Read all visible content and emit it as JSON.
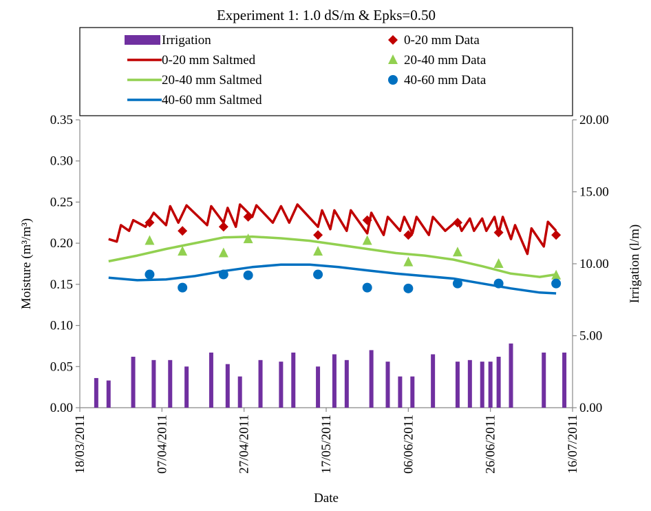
{
  "chart_data": {
    "type": "combo",
    "title": "Experiment 1: 1.0 dS/m & Epks=0.50",
    "x_label": "Date",
    "y_label": "Moisture (m³/m³)",
    "y2_label": "Irrigation (l/m)",
    "xlim": [
      "18/03/2011",
      "16/07/2011"
    ],
    "xticks": [
      "18/03/2011",
      "07/04/2011",
      "27/04/2011",
      "17/05/2011",
      "06/06/2011",
      "26/06/2011",
      "16/07/2011"
    ],
    "ylim": [
      0,
      0.35
    ],
    "yticks": [
      {
        "value": 0,
        "label": "0.00"
      },
      {
        "value": 0.05,
        "label": "0.05"
      },
      {
        "value": 0.1,
        "label": "0.10"
      },
      {
        "value": 0.15,
        "label": "0.15"
      },
      {
        "value": 0.2,
        "label": "0.20"
      },
      {
        "value": 0.25,
        "label": "0.25"
      },
      {
        "value": 0.3,
        "label": "0.30"
      },
      {
        "value": 0.35,
        "label": "0.35"
      }
    ],
    "y2lim": [
      0,
      20
    ],
    "y2ticks": [
      {
        "value": 0,
        "label": "0.00"
      },
      {
        "value": 5,
        "label": "5.00"
      },
      {
        "value": 10,
        "label": "10.00"
      },
      {
        "value": 15,
        "label": "15.00"
      },
      {
        "value": 20,
        "label": "20.00"
      }
    ],
    "grid": false,
    "series": [
      {
        "name": "Irrigation",
        "type": "bar",
        "axis": "y2",
        "color": "#7030a0",
        "x": [
          "22/03/2011",
          "25/03/2011",
          "31/03/2011",
          "05/04/2011",
          "09/04/2011",
          "13/04/2011",
          "19/04/2011",
          "23/04/2011",
          "26/04/2011",
          "01/05/2011",
          "06/05/2011",
          "09/05/2011",
          "15/05/2011",
          "19/05/2011",
          "22/05/2011",
          "28/05/2011",
          "01/06/2011",
          "04/06/2011",
          "07/06/2011",
          "12/06/2011",
          "18/06/2011",
          "21/06/2011",
          "24/06/2011",
          "26/06/2011",
          "28/06/2011",
          "01/07/2011",
          "09/07/2011",
          "14/07/2011"
        ],
        "values": [
          2.06,
          1.89,
          3.54,
          3.31,
          3.31,
          2.86,
          3.83,
          3.03,
          2.17,
          3.31,
          3.2,
          3.83,
          2.86,
          3.71,
          3.31,
          4.0,
          3.2,
          2.17,
          2.17,
          3.71,
          3.2,
          3.31,
          3.2,
          3.2,
          3.54,
          4.46,
          3.83,
          3.83
        ]
      },
      {
        "name": "0-20 mm Saltmed",
        "type": "line",
        "color": "#c00000",
        "x": [
          "25/03/2011",
          "27/03/2011",
          "28/03/2011",
          "30/03/2011",
          "31/03/2011",
          "03/04/2011",
          "05/04/2011",
          "08/04/2011",
          "09/04/2011",
          "11/04/2011",
          "13/04/2011",
          "18/04/2011",
          "19/04/2011",
          "22/04/2011",
          "23/04/2011",
          "25/04/2011",
          "26/04/2011",
          "29/04/2011",
          "30/04/2011",
          "04/05/2011",
          "06/05/2011",
          "08/05/2011",
          "10/05/2011",
          "15/05/2011",
          "16/05/2011",
          "18/05/2011",
          "19/05/2011",
          "22/05/2011",
          "23/05/2011",
          "27/05/2011",
          "28/05/2011",
          "31/05/2011",
          "01/06/2011",
          "04/06/2011",
          "05/06/2011",
          "07/06/2011",
          "08/06/2011",
          "11/06/2011",
          "12/06/2011",
          "15/06/2011",
          "18/06/2011",
          "19/06/2011",
          "21/06/2011",
          "22/06/2011",
          "24/06/2011",
          "25/06/2011",
          "27/06/2011",
          "28/06/2011",
          "29/06/2011",
          "01/07/2011",
          "02/07/2011",
          "05/07/2011",
          "06/07/2011",
          "09/07/2011",
          "10/07/2011",
          "12/07/2011"
        ],
        "values": [
          0.205,
          0.202,
          0.222,
          0.215,
          0.228,
          0.22,
          0.237,
          0.222,
          0.245,
          0.225,
          0.246,
          0.222,
          0.245,
          0.225,
          0.243,
          0.22,
          0.247,
          0.232,
          0.246,
          0.225,
          0.245,
          0.225,
          0.247,
          0.22,
          0.24,
          0.217,
          0.24,
          0.215,
          0.24,
          0.212,
          0.237,
          0.21,
          0.232,
          0.215,
          0.232,
          0.212,
          0.232,
          0.21,
          0.232,
          0.215,
          0.228,
          0.215,
          0.23,
          0.215,
          0.23,
          0.215,
          0.232,
          0.212,
          0.232,
          0.205,
          0.222,
          0.187,
          0.218,
          0.196,
          0.226,
          0.215
        ]
      },
      {
        "name": "20-40 mm Saltmed",
        "type": "line",
        "color": "#92d050",
        "x": [
          "25/03/2011",
          "01/04/2011",
          "08/04/2011",
          "15/04/2011",
          "22/04/2011",
          "29/04/2011",
          "06/05/2011",
          "13/05/2011",
          "20/05/2011",
          "27/05/2011",
          "03/06/2011",
          "10/06/2011",
          "17/06/2011",
          "24/06/2011",
          "01/07/2011",
          "08/07/2011",
          "12/07/2011"
        ],
        "values": [
          0.178,
          0.185,
          0.193,
          0.2,
          0.207,
          0.208,
          0.206,
          0.203,
          0.198,
          0.193,
          0.188,
          0.185,
          0.18,
          0.172,
          0.163,
          0.159,
          0.162
        ]
      },
      {
        "name": "40-60 mm Saltmed",
        "type": "line",
        "color": "#0070c0",
        "x": [
          "25/03/2011",
          "01/04/2011",
          "08/04/2011",
          "15/04/2011",
          "22/04/2011",
          "29/04/2011",
          "06/05/2011",
          "13/05/2011",
          "20/05/2011",
          "27/05/2011",
          "03/06/2011",
          "10/06/2011",
          "17/06/2011",
          "24/06/2011",
          "01/07/2011",
          "08/07/2011",
          "12/07/2011"
        ],
        "values": [
          0.158,
          0.155,
          0.156,
          0.16,
          0.166,
          0.171,
          0.174,
          0.174,
          0.171,
          0.167,
          0.163,
          0.16,
          0.157,
          0.151,
          0.145,
          0.14,
          0.139
        ]
      },
      {
        "name": "0-20 mm Data",
        "type": "scatter",
        "marker": "diamond",
        "color": "#c00000",
        "x": [
          "04/04/2011",
          "12/04/2011",
          "22/04/2011",
          "28/04/2011",
          "15/05/2011",
          "27/05/2011",
          "06/06/2011",
          "18/06/2011",
          "28/06/2011",
          "12/07/2011"
        ],
        "values": [
          0.225,
          0.215,
          0.22,
          0.232,
          0.21,
          0.228,
          0.21,
          0.225,
          0.213,
          0.21
        ]
      },
      {
        "name": "20-40 mm Data",
        "type": "scatter",
        "marker": "triangle",
        "color": "#92d050",
        "x": [
          "04/04/2011",
          "12/04/2011",
          "22/04/2011",
          "28/04/2011",
          "15/05/2011",
          "27/05/2011",
          "06/06/2011",
          "18/06/2011",
          "28/06/2011",
          "12/07/2011"
        ],
        "values": [
          0.203,
          0.19,
          0.188,
          0.205,
          0.19,
          0.203,
          0.177,
          0.189,
          0.175,
          0.161
        ]
      },
      {
        "name": "40-60 mm Data",
        "type": "scatter",
        "marker": "circle",
        "color": "#0070c0",
        "x": [
          "04/04/2011",
          "12/04/2011",
          "22/04/2011",
          "28/04/2011",
          "15/05/2011",
          "27/05/2011",
          "06/06/2011",
          "18/06/2011",
          "28/06/2011",
          "12/07/2011"
        ],
        "values": [
          0.162,
          0.146,
          0.162,
          0.161,
          0.162,
          0.146,
          0.145,
          0.151,
          0.151,
          0.151
        ]
      }
    ]
  }
}
